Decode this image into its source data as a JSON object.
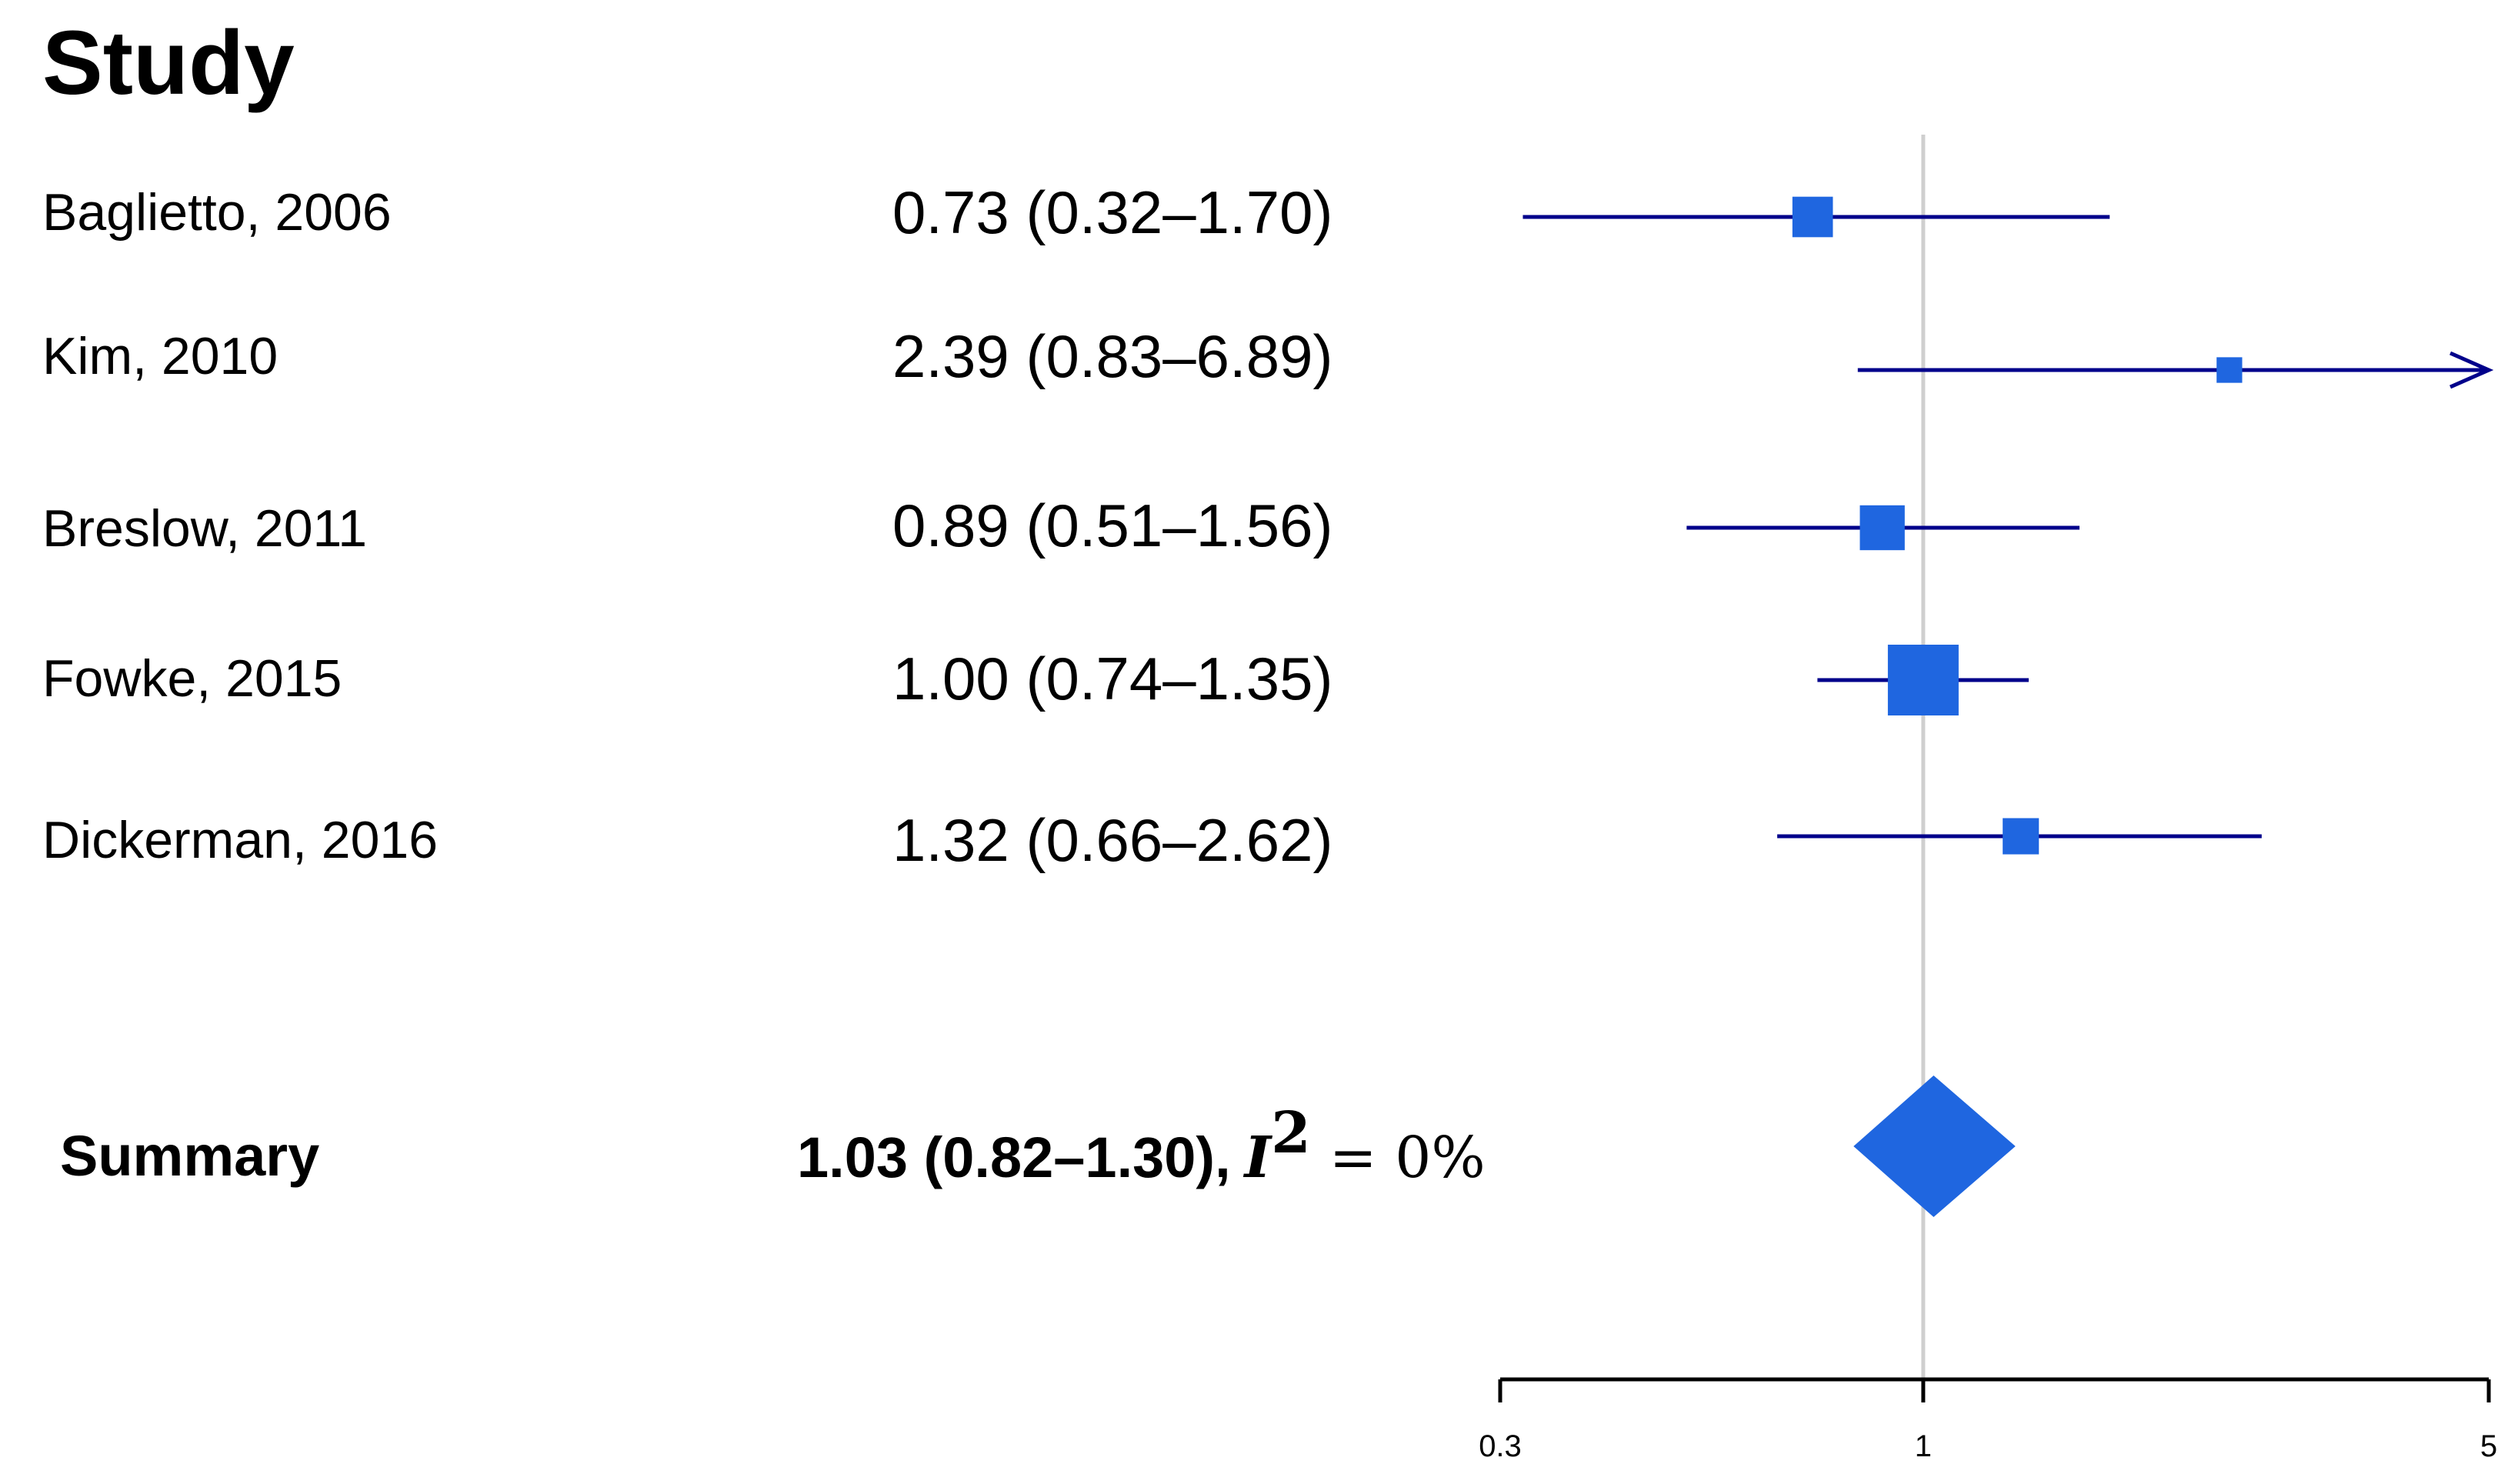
{
  "header": {
    "title": "Study"
  },
  "chart_data": {
    "type": "forest",
    "title": "Study",
    "xscale": "log",
    "xlim": [
      0.3,
      5
    ],
    "xticks": [
      "0.3",
      "1",
      "5"
    ],
    "reference_line": 1,
    "colors": {
      "ci_line": "#00008b",
      "marker": "#1f66e0",
      "reference": "#cfcfcf",
      "axis": "#000000"
    },
    "studies": [
      {
        "label": "Baglietto, 2006",
        "estimate_text": "0.73 (0.32–1.70)",
        "est": 0.73,
        "lo": 0.32,
        "hi": 1.7,
        "weight": 3.5
      },
      {
        "label": "Kim, 2010",
        "estimate_text": "2.39 (0.83–6.89)",
        "est": 2.39,
        "lo": 0.83,
        "hi": 6.89,
        "weight": 1.4
      },
      {
        "label": "Breslow, 2011",
        "estimate_text": "0.89 (0.51–1.56)",
        "est": 0.89,
        "lo": 0.51,
        "hi": 1.56,
        "weight": 4.3
      },
      {
        "label": "Fowke, 2015",
        "estimate_text": "1.00 (0.74–1.35)",
        "est": 1.0,
        "lo": 0.74,
        "hi": 1.35,
        "weight": 10.7
      },
      {
        "label": "Dickerman, 2016",
        "estimate_text": "1.32 (0.66–2.62)",
        "est": 1.32,
        "lo": 0.66,
        "hi": 2.62,
        "weight": 2.8
      }
    ],
    "summary": {
      "label": "Summary",
      "estimate_text": "1.03 (0.82–1.30),",
      "heterogeneity_var": "I",
      "heterogeneity_sup": "2",
      "heterogeneity_rest": "= 0%",
      "est": 1.03,
      "lo": 0.82,
      "hi": 1.3
    }
  }
}
